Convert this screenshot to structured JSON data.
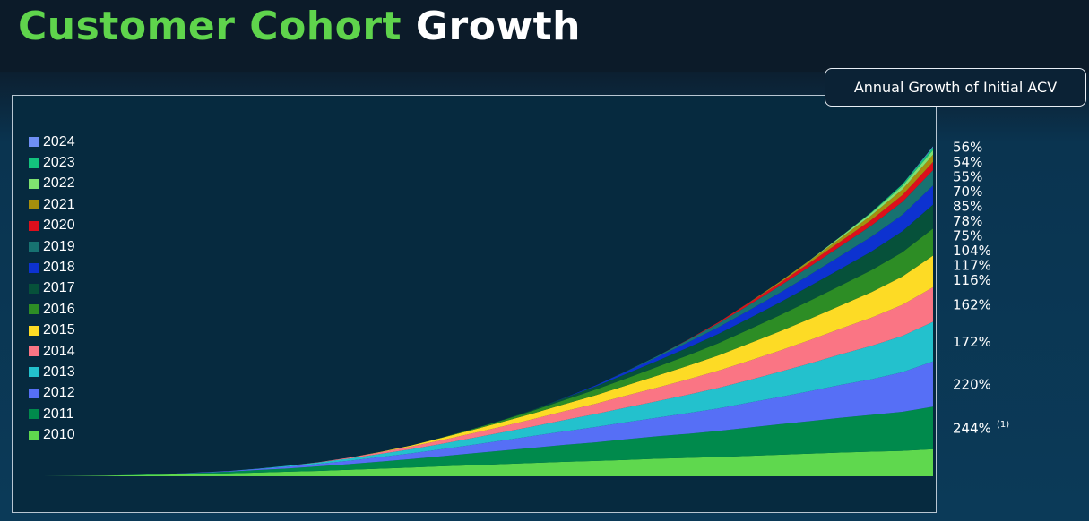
{
  "title": {
    "part1": "Customer Cohort",
    "part2": "Growth"
  },
  "header_box": "Annual Growth of Initial ACV",
  "chart_data": {
    "type": "area",
    "stacked": true,
    "x_count": 30,
    "axes_shown": false,
    "legend_position": "left",
    "series": [
      {
        "name": "2010",
        "color": "#5fd84e",
        "start": 1,
        "values": [
          0.1,
          0.2,
          0.4,
          0.6,
          0.8,
          1.0,
          1.3,
          1.6,
          1.9,
          2.3,
          2.7,
          3.1,
          3.5,
          3.9,
          4.3,
          4.7,
          5.1,
          5.4,
          5.8,
          6.2,
          6.5,
          6.8,
          7.2,
          7.6,
          8.0,
          8.4,
          8.7,
          9.0,
          9.6,
          11.5
        ]
      },
      {
        "name": "2011",
        "color": "#008a4c",
        "start": 3,
        "values": [
          0.1,
          0.2,
          0.4,
          0.6,
          0.9,
          1.2,
          1.6,
          2.0,
          2.5,
          3.0,
          3.6,
          4.2,
          4.8,
          5.4,
          6.0,
          6.6,
          7.3,
          7.9,
          8.5,
          9.2,
          10.0,
          10.8,
          11.5,
          12.3,
          13.0,
          13.8,
          15.0,
          18.0
        ]
      },
      {
        "name": "2012",
        "color": "#566ff6",
        "start": 5,
        "values": [
          0.1,
          0.2,
          0.4,
          0.6,
          0.9,
          1.2,
          1.6,
          2.0,
          2.5,
          3.0,
          3.6,
          4.2,
          4.8,
          5.4,
          6.0,
          6.6,
          7.3,
          8.0,
          8.8,
          9.6,
          10.6,
          11.6,
          12.6,
          14.0,
          16.0,
          19.0
        ]
      },
      {
        "name": "2013",
        "color": "#23c1cd",
        "start": 7,
        "values": [
          0.1,
          0.3,
          0.5,
          0.8,
          1.1,
          1.5,
          1.9,
          2.4,
          2.9,
          3.4,
          4.0,
          4.6,
          5.2,
          5.8,
          6.5,
          7.2,
          8.0,
          8.9,
          9.8,
          10.8,
          11.8,
          12.8,
          14.0,
          16.0
        ]
      },
      {
        "name": "2014",
        "color": "#fa7584",
        "start": 9,
        "values": [
          0.1,
          0.3,
          0.6,
          0.9,
          1.3,
          1.7,
          2.1,
          2.6,
          3.1,
          3.6,
          4.2,
          4.8,
          5.4,
          6.1,
          6.8,
          7.5,
          8.3,
          9.1,
          10.0,
          11.0,
          12.2,
          14.5
        ]
      },
      {
        "name": "2015",
        "color": "#fddb25",
        "start": 11,
        "values": [
          0.1,
          0.4,
          0.8,
          1.2,
          1.6,
          2.0,
          2.5,
          3.0,
          3.6,
          4.2,
          4.8,
          5.4,
          6.1,
          6.8,
          7.5,
          8.2,
          9.0,
          10.0,
          11.2,
          13.0
        ]
      },
      {
        "name": "2016",
        "color": "#2d8d25",
        "start": 13,
        "values": [
          0.1,
          0.3,
          0.6,
          1.0,
          1.5,
          2.0,
          2.5,
          3.1,
          3.7,
          4.3,
          5.0,
          5.7,
          6.4,
          7.1,
          7.8,
          8.6,
          9.6,
          11.0
        ]
      },
      {
        "name": "2017",
        "color": "#06513a",
        "start": 15,
        "values": [
          0.1,
          0.3,
          0.7,
          1.1,
          1.6,
          2.1,
          2.7,
          3.3,
          3.9,
          4.5,
          5.2,
          5.9,
          6.6,
          7.4,
          8.4,
          10.0
        ]
      },
      {
        "name": "2018",
        "color": "#0d32d0",
        "start": 17,
        "values": [
          0.1,
          0.4,
          0.8,
          1.3,
          1.8,
          2.3,
          2.8,
          3.4,
          4.0,
          4.6,
          5.2,
          5.8,
          6.8,
          8.2
        ]
      },
      {
        "name": "2019",
        "color": "#177271",
        "start": 19,
        "values": [
          0.1,
          0.4,
          0.9,
          1.4,
          1.9,
          2.4,
          2.9,
          3.4,
          4.0,
          4.6,
          5.4,
          6.6
        ]
      },
      {
        "name": "2020",
        "color": "#dd0f1c",
        "start": 21,
        "values": [
          0.1,
          0.4,
          0.8,
          1.1,
          1.4,
          1.7,
          2.0,
          2.4,
          2.9,
          3.6
        ]
      },
      {
        "name": "2021",
        "color": "#a58f0d",
        "start": 23,
        "values": [
          0.1,
          0.4,
          0.8,
          1.2,
          1.6,
          2.0,
          2.6,
          3.2
        ]
      },
      {
        "name": "2022",
        "color": "#80e270",
        "start": 25,
        "values": [
          0.1,
          0.5,
          0.9,
          1.2,
          1.6,
          2.1
        ]
      },
      {
        "name": "2023",
        "color": "#13c27d",
        "start": 27,
        "values": [
          0.2,
          0.6,
          1.0,
          1.5
        ]
      },
      {
        "name": "2024",
        "color": "#6f8ff5",
        "start": 29,
        "values": [
          0.3,
          0.8
        ]
      }
    ],
    "growth_labels": [
      {
        "series": "2024",
        "label": "56%"
      },
      {
        "series": "2023",
        "label": "54%"
      },
      {
        "series": "2022",
        "label": "55%"
      },
      {
        "series": "2021",
        "label": "70%"
      },
      {
        "series": "2020",
        "label": "85%"
      },
      {
        "series": "2019",
        "label": "78%"
      },
      {
        "series": "2018",
        "label": "75%"
      },
      {
        "series": "2017",
        "label": "104%"
      },
      {
        "series": "2016",
        "label": "117%"
      },
      {
        "series": "2015",
        "label": "116%"
      },
      {
        "series": "2014",
        "label": "162%"
      },
      {
        "series": "2013",
        "label": "172%"
      },
      {
        "series": "2012",
        "label": "220%"
      },
      {
        "series": "2011",
        "label": "244%",
        "footnote": "(1)"
      }
    ]
  }
}
